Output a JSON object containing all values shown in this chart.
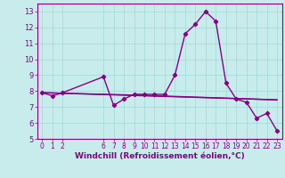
{
  "line1_x": [
    0,
    1,
    2,
    6,
    7,
    8,
    9,
    10,
    11,
    12,
    13,
    14,
    15,
    16,
    17,
    18,
    19,
    20,
    21,
    22,
    23
  ],
  "line1_y": [
    7.9,
    7.7,
    7.9,
    8.9,
    7.1,
    7.5,
    7.8,
    7.8,
    7.8,
    7.8,
    9.0,
    11.6,
    12.2,
    13.0,
    12.4,
    8.5,
    7.5,
    7.3,
    6.3,
    6.6,
    5.5
  ],
  "line2_x": [
    0,
    23
  ],
  "line2_y": [
    7.9,
    7.45
  ],
  "line3_x": [
    0,
    9,
    23
  ],
  "line3_y": [
    7.9,
    7.75,
    7.45
  ],
  "color": "#880088",
  "bg_color": "#c8ecec",
  "grid_color": "#a0d8d8",
  "xlabel": "Windchill (Refroidissement éolien,°C)",
  "xlim": [
    -0.5,
    23.5
  ],
  "ylim": [
    5.0,
    13.5
  ],
  "yticks": [
    5,
    6,
    7,
    8,
    9,
    10,
    11,
    12,
    13
  ],
  "xticks": [
    0,
    1,
    2,
    6,
    7,
    8,
    9,
    10,
    11,
    12,
    13,
    14,
    15,
    16,
    17,
    18,
    19,
    20,
    21,
    22,
    23
  ],
  "marker": "D",
  "marker_size": 2.2,
  "line_width": 1.0,
  "tick_fontsize": 5.5,
  "xlabel_fontsize": 6.5
}
